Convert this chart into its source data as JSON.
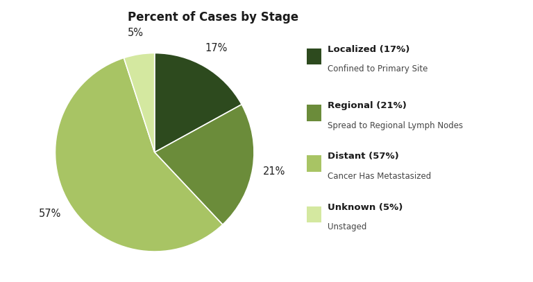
{
  "title": "Percent of Cases by Stage",
  "slices": [
    17,
    21,
    57,
    5
  ],
  "colors": [
    "#2d4a1e",
    "#6b8c3a",
    "#a8c464",
    "#d4e8a0"
  ],
  "labels": [
    "17%",
    "21%",
    "57%",
    "5%"
  ],
  "legend_entries": [
    {
      "bold": "Localized (17%)",
      "sub": "Confined to Primary Site"
    },
    {
      "bold": "Regional (21%)",
      "sub": "Spread to Regional Lymph Nodes"
    },
    {
      "bold": "Distant (57%)",
      "sub": "Cancer Has Metastasized"
    },
    {
      "bold": "Unknown (5%)",
      "sub": "Unstaged"
    }
  ],
  "startangle": 90,
  "background_color": "#ffffff",
  "title_fontsize": 12,
  "label_fontsize": 10.5
}
